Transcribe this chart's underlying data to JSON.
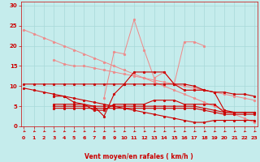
{
  "background_color": "#c5ecec",
  "grid_color": "#a8d8d8",
  "line_color_light": "#f08888",
  "line_color_dark": "#cc0000",
  "xlabel": "Vent moyen/en rafales ( km/h )",
  "xlabel_color": "#cc0000",
  "tick_color": "#cc0000",
  "ylim": [
    0,
    31
  ],
  "xlim": [
    -0.3,
    23.3
  ],
  "yticks": [
    0,
    5,
    10,
    15,
    20,
    25,
    30
  ],
  "xticks": [
    0,
    1,
    2,
    3,
    4,
    5,
    6,
    7,
    8,
    9,
    10,
    11,
    12,
    13,
    14,
    15,
    16,
    17,
    18,
    19,
    20,
    21,
    22,
    23
  ],
  "lines_light": [
    [
      24.0,
      23.0,
      22.0,
      21.0,
      20.0,
      19.0,
      18.0,
      17.0,
      16.0,
      15.0,
      14.0,
      13.0,
      12.0,
      11.0,
      10.0,
      9.0,
      8.0,
      7.0,
      6.0,
      5.0,
      4.0,
      3.0,
      2.0,
      1.0
    ],
    [
      null,
      null,
      null,
      16.5,
      15.5,
      15.0,
      15.0,
      14.5,
      14.0,
      13.5,
      13.0,
      12.5,
      12.0,
      11.5,
      11.0,
      10.5,
      10.0,
      9.5,
      9.0,
      8.5,
      8.0,
      7.5,
      7.0,
      6.5
    ],
    [
      null,
      null,
      null,
      null,
      null,
      null,
      null,
      null,
      7.0,
      18.5,
      18.0,
      26.5,
      19.0,
      12.0,
      13.5,
      10.5,
      21.0,
      21.0,
      20.0,
      null,
      null,
      null,
      null,
      null
    ]
  ],
  "lines_dark": [
    [
      10.5,
      10.5,
      10.5,
      10.5,
      10.5,
      10.5,
      10.5,
      10.5,
      10.5,
      10.5,
      10.5,
      10.5,
      10.5,
      10.5,
      10.5,
      10.5,
      10.5,
      10.0,
      9.0,
      8.5,
      8.5,
      8.0,
      8.0,
      7.5
    ],
    [
      null,
      null,
      null,
      7.5,
      7.5,
      6.0,
      5.5,
      5.0,
      2.5,
      8.0,
      10.5,
      13.5,
      13.5,
      13.5,
      13.5,
      10.5,
      9.0,
      9.0,
      9.0,
      8.5,
      4.0,
      3.5,
      3.5,
      3.5
    ],
    [
      null,
      null,
      null,
      5.5,
      5.5,
      5.5,
      5.5,
      4.0,
      4.0,
      5.5,
      5.5,
      5.5,
      5.5,
      6.5,
      6.5,
      6.5,
      5.5,
      5.5,
      5.5,
      5.5,
      3.5,
      3.5,
      3.5,
      3.5
    ],
    [
      null,
      null,
      null,
      5.0,
      5.0,
      5.0,
      5.0,
      5.0,
      5.0,
      5.0,
      5.0,
      5.0,
      5.0,
      5.0,
      5.0,
      5.0,
      5.0,
      5.0,
      4.5,
      4.0,
      3.5,
      3.5,
      3.5,
      3.5
    ],
    [
      null,
      null,
      null,
      4.5,
      4.5,
      4.5,
      4.5,
      4.5,
      4.5,
      4.5,
      4.5,
      4.5,
      4.5,
      4.5,
      4.5,
      4.5,
      4.5,
      4.5,
      4.0,
      3.5,
      3.0,
      3.0,
      3.0,
      3.0
    ]
  ],
  "line_dark_diagonal": [
    9.5,
    9.0,
    8.5,
    8.0,
    7.5,
    7.0,
    6.5,
    6.0,
    5.5,
    5.0,
    4.5,
    4.0,
    3.5,
    3.0,
    2.5,
    2.0,
    1.5,
    1.0,
    1.0,
    1.5,
    1.5,
    1.5,
    1.5,
    1.5
  ],
  "line_dark_drop": [
    null,
    null,
    null,
    null,
    null,
    null,
    null,
    null,
    null,
    null,
    null,
    null,
    null,
    null,
    null,
    null,
    null,
    null,
    1.0,
    4.0,
    3.5,
    3.0,
    3.0,
    3.0
  ],
  "marker_size": 2.5
}
